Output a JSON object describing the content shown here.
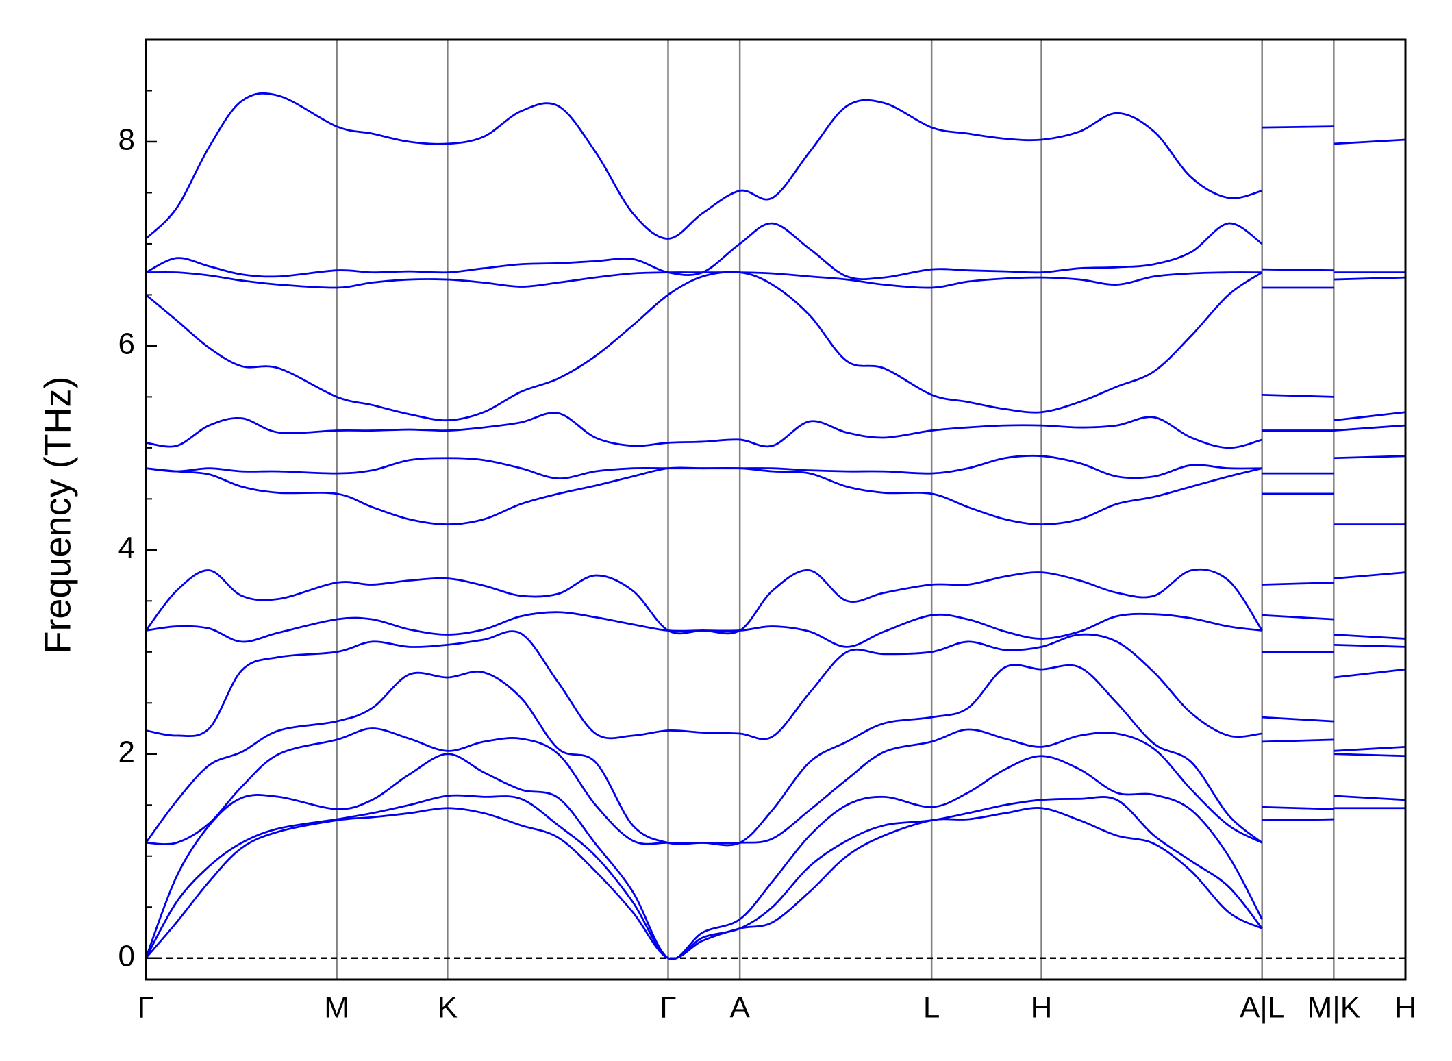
{
  "chart_data": {
    "type": "line",
    "ylabel": "Frequency (THz)",
    "x": [
      0,
      0.033,
      0.068,
      0.103,
      0.143,
      0.205,
      0.243,
      0.283,
      0.324,
      0.363,
      0.403,
      0.443,
      0.483,
      0.523,
      0.561,
      0.598,
      0.638,
      0.673,
      0.713,
      0.753,
      0.793,
      0.844,
      0.883,
      0.923,
      0.962,
      1.003,
      1.043,
      1.083,
      1.123,
      1.163,
      1.199,
      null,
      1.199,
      1.276,
      null,
      1.276,
      1.353
    ],
    "xlim": [
      0,
      1.353
    ],
    "xticks": [
      {
        "value": 0,
        "label": "Γ"
      },
      {
        "value": 0.205,
        "label": "M"
      },
      {
        "value": 0.324,
        "label": "K"
      },
      {
        "value": 0.561,
        "label": "Γ"
      },
      {
        "value": 0.638,
        "label": "A"
      },
      {
        "value": 0.844,
        "label": "L"
      },
      {
        "value": 0.962,
        "label": "H"
      },
      {
        "value": 1.199,
        "label": "A|L"
      },
      {
        "value": 1.276,
        "label": "M|K"
      },
      {
        "value": 1.353,
        "label": "H"
      }
    ],
    "ylim": [
      -0.21,
      9.0
    ],
    "yticks": [
      0,
      2,
      4,
      6,
      8
    ],
    "yminorticks": [
      0.5,
      1,
      1.5,
      2.5,
      3,
      3.5,
      4.5,
      5,
      5.5,
      6.5,
      7,
      7.5,
      8.5
    ],
    "hline": 0,
    "vline_color": "#808080",
    "series": [
      {
        "color": "#0000ee",
        "values": [
          0,
          0.35,
          0.75,
          1.08,
          1.24,
          1.35,
          1.38,
          1.42,
          1.47,
          1.42,
          1.3,
          1.18,
          0.85,
          0.45,
          0,
          0.17,
          0.29,
          0.35,
          0.65,
          1.0,
          1.2,
          1.35,
          1.36,
          1.42,
          1.47,
          1.35,
          1.2,
          1.12,
          0.85,
          0.45,
          0.29,
          null,
          1.35,
          1.36,
          null,
          1.47,
          1.47
        ]
      },
      {
        "color": "#0000ee",
        "values": [
          0,
          0.55,
          0.9,
          1.13,
          1.27,
          1.36,
          1.42,
          1.5,
          1.59,
          1.58,
          1.56,
          1.3,
          1.0,
          0.55,
          0,
          0.2,
          0.29,
          0.5,
          0.9,
          1.15,
          1.3,
          1.35,
          1.42,
          1.5,
          1.55,
          1.56,
          1.55,
          1.2,
          0.95,
          0.7,
          0.29,
          null,
          1.35,
          1.36,
          null,
          1.59,
          1.55
        ]
      },
      {
        "color": "#0000ee",
        "values": [
          0,
          0.8,
          1.3,
          1.57,
          1.58,
          1.46,
          1.55,
          1.8,
          2.0,
          1.82,
          1.65,
          1.57,
          1.12,
          0.65,
          0,
          0.25,
          0.38,
          0.75,
          1.2,
          1.5,
          1.58,
          1.48,
          1.62,
          1.85,
          1.98,
          1.85,
          1.62,
          1.6,
          1.45,
          1.0,
          0.38,
          null,
          1.48,
          1.46,
          null,
          2.0,
          1.98
        ]
      },
      {
        "color": "#0000ee",
        "values": [
          1.13,
          1.13,
          1.32,
          1.68,
          2.0,
          2.14,
          2.25,
          2.15,
          2.03,
          2.12,
          2.15,
          2.0,
          1.5,
          1.15,
          1.13,
          1.13,
          1.13,
          1.17,
          1.45,
          1.75,
          2.02,
          2.12,
          2.24,
          2.15,
          2.07,
          2.18,
          2.2,
          2.05,
          1.65,
          1.3,
          1.13,
          null,
          2.12,
          2.14,
          null,
          2.03,
          2.07
        ]
      },
      {
        "color": "#0000ee",
        "values": [
          1.13,
          1.54,
          1.89,
          2.02,
          2.23,
          2.32,
          2.45,
          2.78,
          2.75,
          2.8,
          2.55,
          2.05,
          1.92,
          1.3,
          1.13,
          1.13,
          1.13,
          1.45,
          1.92,
          2.12,
          2.3,
          2.36,
          2.45,
          2.85,
          2.83,
          2.85,
          2.5,
          2.1,
          1.92,
          1.4,
          1.13,
          null,
          2.36,
          2.32,
          null,
          2.75,
          2.83
        ]
      },
      {
        "color": "#0000ee",
        "values": [
          2.23,
          2.18,
          2.25,
          2.82,
          2.95,
          3.0,
          3.1,
          3.05,
          3.07,
          3.12,
          3.18,
          2.7,
          2.2,
          2.18,
          2.23,
          2.21,
          2.2,
          2.17,
          2.6,
          3.0,
          2.98,
          3.0,
          3.1,
          3.02,
          3.05,
          3.17,
          3.1,
          2.8,
          2.4,
          2.18,
          2.2,
          null,
          3.0,
          3.0,
          null,
          3.07,
          3.05
        ]
      },
      {
        "color": "#0000ee",
        "values": [
          3.21,
          3.25,
          3.23,
          3.1,
          3.19,
          3.32,
          3.32,
          3.22,
          3.17,
          3.22,
          3.35,
          3.39,
          3.34,
          3.27,
          3.21,
          3.21,
          3.21,
          3.25,
          3.2,
          3.05,
          3.2,
          3.36,
          3.32,
          3.2,
          3.13,
          3.2,
          3.35,
          3.37,
          3.33,
          3.25,
          3.21,
          null,
          3.36,
          3.32,
          null,
          3.17,
          3.13
        ]
      },
      {
        "color": "#0000ee",
        "values": [
          3.21,
          3.6,
          3.8,
          3.55,
          3.52,
          3.68,
          3.66,
          3.7,
          3.72,
          3.65,
          3.55,
          3.57,
          3.75,
          3.6,
          3.21,
          3.21,
          3.21,
          3.6,
          3.8,
          3.5,
          3.58,
          3.66,
          3.66,
          3.74,
          3.78,
          3.7,
          3.58,
          3.55,
          3.8,
          3.7,
          3.21,
          null,
          3.66,
          3.68,
          null,
          3.72,
          3.78
        ]
      },
      {
        "color": "#0000ee",
        "values": [
          4.8,
          4.77,
          4.74,
          4.62,
          4.56,
          4.55,
          4.42,
          4.3,
          4.25,
          4.3,
          4.45,
          4.55,
          4.63,
          4.72,
          4.8,
          4.8,
          4.8,
          4.77,
          4.75,
          4.62,
          4.56,
          4.55,
          4.42,
          4.3,
          4.25,
          4.3,
          4.45,
          4.52,
          4.62,
          4.72,
          4.8,
          null,
          4.55,
          4.55,
          null,
          4.25,
          4.25
        ]
      },
      {
        "color": "#0000ee",
        "values": [
          4.8,
          4.77,
          4.8,
          4.77,
          4.77,
          4.75,
          4.78,
          4.88,
          4.9,
          4.88,
          4.8,
          4.7,
          4.77,
          4.8,
          4.8,
          4.8,
          4.8,
          4.8,
          4.78,
          4.77,
          4.77,
          4.75,
          4.8,
          4.9,
          4.92,
          4.85,
          4.72,
          4.72,
          4.83,
          4.8,
          4.8,
          null,
          4.75,
          4.75,
          null,
          4.9,
          4.92
        ]
      },
      {
        "color": "#0000ee",
        "values": [
          5.05,
          5.02,
          5.22,
          5.29,
          5.15,
          5.17,
          5.17,
          5.18,
          5.17,
          5.2,
          5.25,
          5.34,
          5.1,
          5.02,
          5.05,
          5.06,
          5.08,
          5.02,
          5.26,
          5.15,
          5.1,
          5.17,
          5.2,
          5.22,
          5.22,
          5.2,
          5.22,
          5.3,
          5.1,
          5.0,
          5.08,
          null,
          5.17,
          5.17,
          null,
          5.17,
          5.22
        ]
      },
      {
        "color": "#0000ee",
        "values": [
          6.5,
          6.25,
          5.98,
          5.8,
          5.78,
          5.5,
          5.42,
          5.33,
          5.27,
          5.35,
          5.55,
          5.68,
          5.9,
          6.2,
          6.5,
          6.68,
          6.72,
          6.6,
          6.3,
          5.85,
          5.78,
          5.52,
          5.45,
          5.38,
          5.35,
          5.45,
          5.6,
          5.75,
          6.1,
          6.5,
          6.72,
          null,
          5.52,
          5.5,
          null,
          5.27,
          5.35
        ]
      },
      {
        "color": "#0000ee",
        "values": [
          6.72,
          6.72,
          6.69,
          6.64,
          6.6,
          6.57,
          6.62,
          6.65,
          6.65,
          6.62,
          6.58,
          6.62,
          6.67,
          6.71,
          6.72,
          6.72,
          6.72,
          6.71,
          6.68,
          6.65,
          6.6,
          6.57,
          6.63,
          6.66,
          6.67,
          6.65,
          6.6,
          6.68,
          6.71,
          6.72,
          6.72,
          null,
          6.57,
          6.57,
          null,
          6.65,
          6.67
        ]
      },
      {
        "color": "#0000ee",
        "values": [
          6.72,
          6.86,
          6.78,
          6.7,
          6.68,
          6.74,
          6.72,
          6.73,
          6.72,
          6.76,
          6.8,
          6.81,
          6.83,
          6.85,
          6.72,
          6.72,
          7.0,
          7.2,
          6.95,
          6.68,
          6.67,
          6.75,
          6.74,
          6.73,
          6.72,
          6.76,
          6.77,
          6.8,
          6.92,
          7.2,
          7.0,
          null,
          6.75,
          6.74,
          null,
          6.72,
          6.72
        ]
      },
      {
        "color": "#0000ee",
        "values": [
          7.05,
          7.35,
          7.95,
          8.4,
          8.45,
          8.15,
          8.08,
          8.0,
          7.98,
          8.05,
          8.3,
          8.35,
          7.9,
          7.3,
          7.05,
          7.3,
          7.52,
          7.45,
          7.9,
          8.35,
          8.38,
          8.14,
          8.08,
          8.03,
          8.02,
          8.1,
          8.28,
          8.1,
          7.65,
          7.45,
          7.52,
          null,
          8.14,
          8.15,
          null,
          7.98,
          8.02
        ]
      }
    ]
  }
}
